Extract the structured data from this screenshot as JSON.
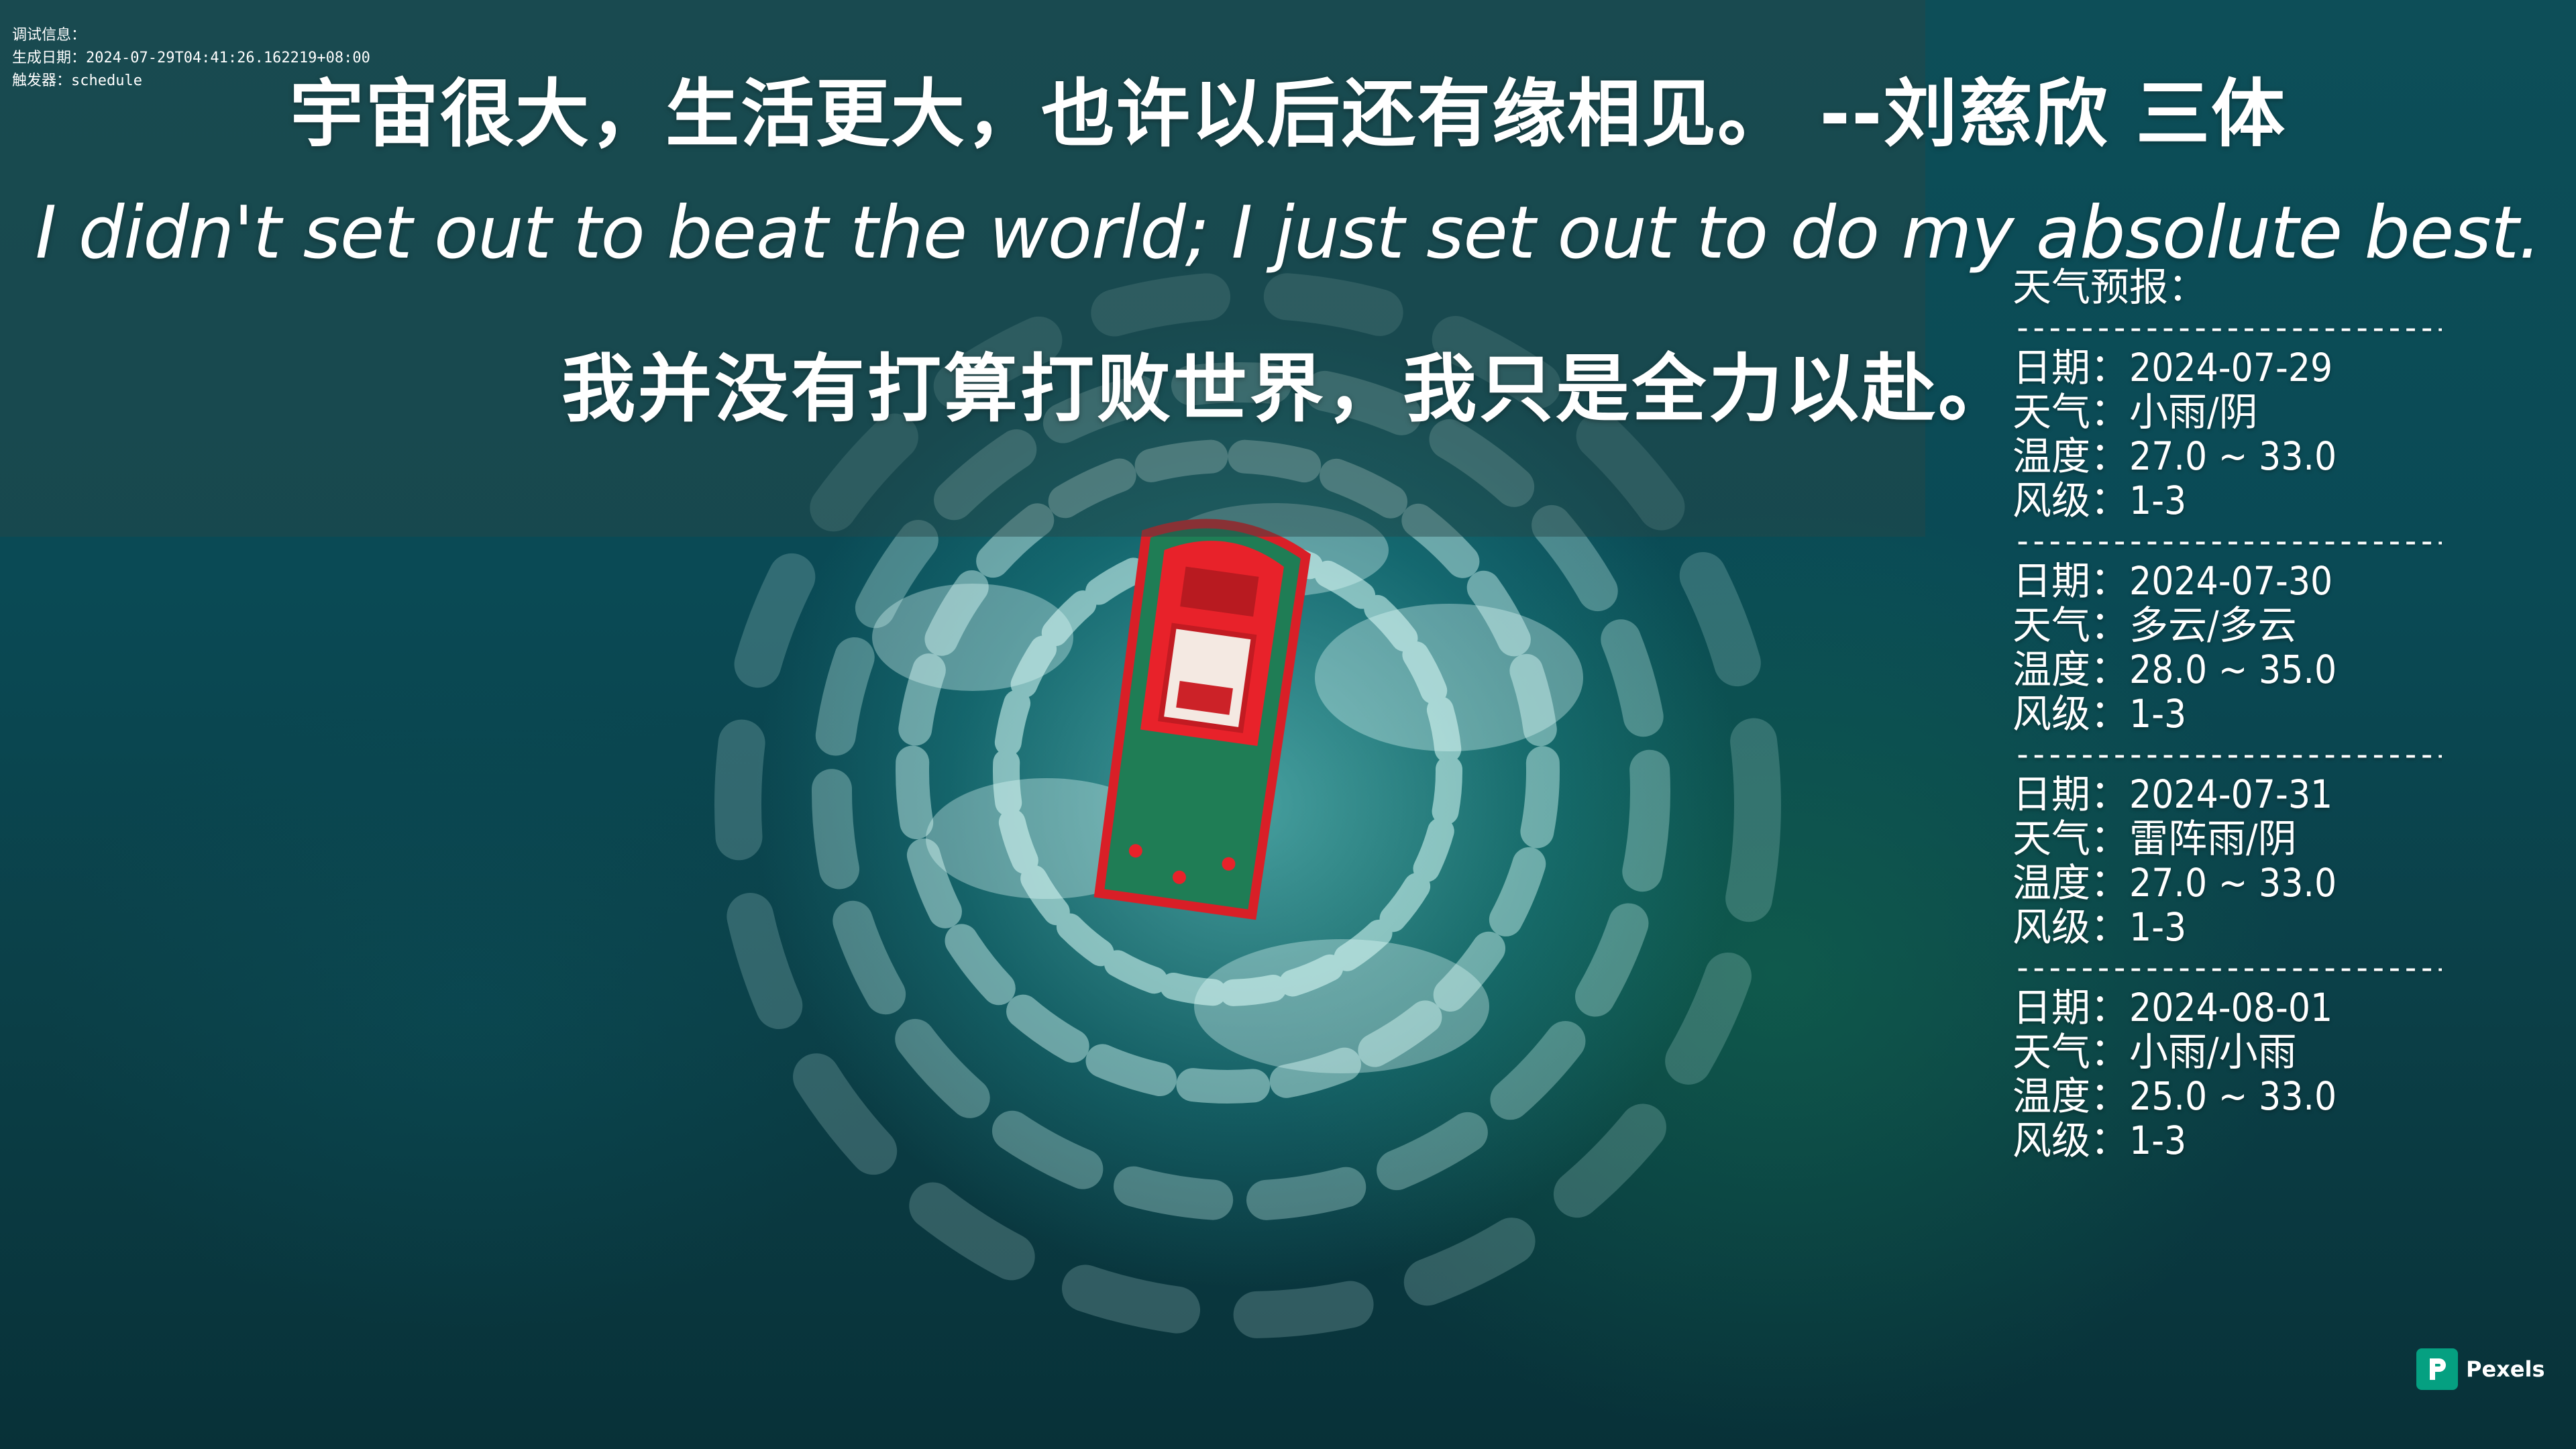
{
  "debug": {
    "line1": "调试信息：",
    "line2": "生成日期：2024-07-29T04:41:26.162219+08:00",
    "line3": "触发器：schedule"
  },
  "quotes": {
    "zh": "宇宙很大，生活更大，也许以后还有缘相见。   --刘慈欣 三体",
    "en": "I didn't set out to beat the world; I just set out to do my absolute best.",
    "en_zh": "我并没有打算打败世界，我只是全力以赴。"
  },
  "weather": {
    "title": "天气预报：",
    "separator": "-------------------------------",
    "days": [
      {
        "date": "日期：2024-07-29",
        "weather": "天气：小雨/阴",
        "temp": "温度：27.0 ~ 33.0",
        "wind": "风级：1-3"
      },
      {
        "date": "日期：2024-07-30",
        "weather": "天气：多云/多云",
        "temp": "温度：28.0 ~ 35.0",
        "wind": "风级：1-3"
      },
      {
        "date": "日期：2024-07-31",
        "weather": "天气：雷阵雨/阴",
        "temp": "温度：27.0 ~ 33.0",
        "wind": "风级：1-3"
      },
      {
        "date": "日期：2024-08-01",
        "weather": "天气：小雨/小雨",
        "temp": "温度：25.0 ~ 33.0",
        "wind": "风级：1-3"
      }
    ]
  },
  "watermark": {
    "label": "Pexels",
    "icon": "pexels-logo-icon"
  },
  "colors": {
    "band": "#284646",
    "ocean": "#0b4a55",
    "boat_hull": "#e8222a",
    "boat_deck": "#1f7d55",
    "pexels": "#05a081"
  }
}
